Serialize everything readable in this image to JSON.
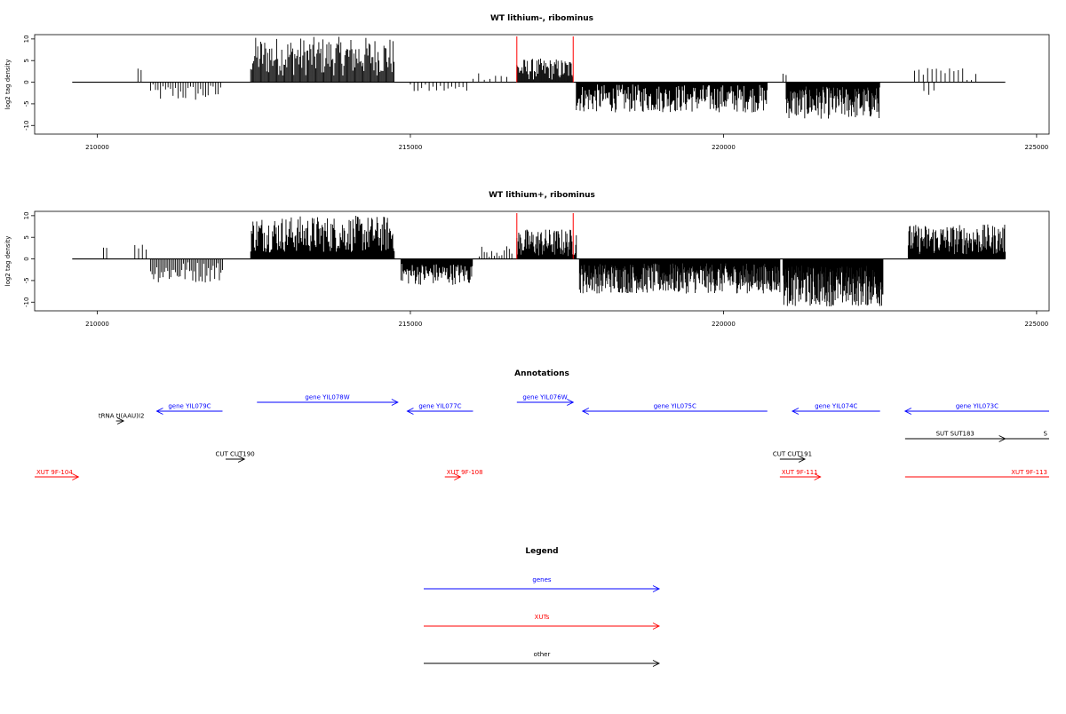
{
  "chart_data": [
    {
      "type": "bar",
      "title": "WT lithium-, ribominus",
      "ylabel": "log2 tag density",
      "xlim": [
        209000,
        225200
      ],
      "ylim": [
        -12,
        11
      ],
      "x_ticks": [
        210000,
        215000,
        220000,
        225000
      ],
      "x_tick_labels": [
        "210000",
        "215000",
        "220000",
        "225000"
      ],
      "y_ticks": [
        -10,
        -5,
        0,
        5,
        10
      ],
      "y_tick_labels": [
        "-10",
        "-5",
        "0",
        "5",
        "10"
      ],
      "baseline": [
        209600,
        224500
      ],
      "marker_lines": [
        216700,
        217600
      ],
      "marker_color": "#ff0000",
      "regions": [
        {
          "start": 210650,
          "end": 210700,
          "step": 50,
          "min": 2.5,
          "max": 3.5
        },
        {
          "start": 210850,
          "end": 212000,
          "step": 40,
          "min": -4.5,
          "max": -0.5
        },
        {
          "start": 212450,
          "end": 214750,
          "step": 16,
          "min": 1.5,
          "max": 10.5
        },
        {
          "start": 215000,
          "end": 215900,
          "step": 60,
          "min": -2.5,
          "max": -0.5
        },
        {
          "start": 216000,
          "end": 216600,
          "step": 90,
          "min": 0.5,
          "max": 2.5
        },
        {
          "start": 216700,
          "end": 217600,
          "step": 14,
          "min": 0.5,
          "max": 5.5
        },
        {
          "start": 217650,
          "end": 220700,
          "step": 12,
          "min": -7,
          "max": -0.5
        },
        {
          "start": 220950,
          "end": 221000,
          "step": 50,
          "min": 1.5,
          "max": 2
        },
        {
          "start": 221000,
          "end": 222500,
          "step": 9,
          "min": -8.5,
          "max": -1
        },
        {
          "start": 223050,
          "end": 224050,
          "step": 70,
          "min": 0.5,
          "max": 3.5
        },
        {
          "start": 223200,
          "end": 223400,
          "step": 80,
          "min": -3,
          "max": -1
        }
      ]
    },
    {
      "type": "bar",
      "title": "WT lithium+, ribominus",
      "ylabel": "log2 tag density",
      "xlim": [
        209000,
        225200
      ],
      "ylim": [
        -12,
        11
      ],
      "x_ticks": [
        210000,
        215000,
        220000,
        225000
      ],
      "x_tick_labels": [
        "210000",
        "215000",
        "220000",
        "225000"
      ],
      "y_ticks": [
        -10,
        -5,
        0,
        5,
        10
      ],
      "y_tick_labels": [
        "-10",
        "-5",
        "0",
        "5",
        "10"
      ],
      "baseline": [
        209600,
        224500
      ],
      "marker_lines": [
        216700,
        217600
      ],
      "marker_color": "#ff0000",
      "regions": [
        {
          "start": 210100,
          "end": 210150,
          "step": 50,
          "min": 2.5,
          "max": 3
        },
        {
          "start": 210600,
          "end": 210800,
          "step": 60,
          "min": 2,
          "max": 3.5
        },
        {
          "start": 210850,
          "end": 212000,
          "step": 25,
          "min": -5.5,
          "max": -0.5
        },
        {
          "start": 212450,
          "end": 214750,
          "step": 12,
          "min": 1.5,
          "max": 10
        },
        {
          "start": 214850,
          "end": 216000,
          "step": 12,
          "min": -6,
          "max": -1
        },
        {
          "start": 216100,
          "end": 216650,
          "step": 40,
          "min": 0.5,
          "max": 3
        },
        {
          "start": 216700,
          "end": 217650,
          "step": 10,
          "min": 0.5,
          "max": 7
        },
        {
          "start": 217700,
          "end": 220900,
          "step": 8,
          "min": -8,
          "max": -1
        },
        {
          "start": 220950,
          "end": 222550,
          "step": 7,
          "min": -11,
          "max": -1.5
        },
        {
          "start": 222950,
          "end": 224500,
          "step": 10,
          "min": 1,
          "max": 8
        }
      ]
    }
  ],
  "annotations": {
    "title": "Annotations",
    "genes": [
      {
        "label": "gene YIL079C",
        "start": 210950,
        "end": 212000,
        "dir": "left",
        "color": "#0000ff",
        "row": 1
      },
      {
        "label": "gene YIL078W",
        "start": 212550,
        "end": 214800,
        "dir": "right",
        "color": "#0000ff",
        "row": 0
      },
      {
        "label": "gene YIL077C",
        "start": 214950,
        "end": 216000,
        "dir": "left",
        "color": "#0000ff",
        "row": 1
      },
      {
        "label": "gene YIL076W",
        "start": 216700,
        "end": 217600,
        "dir": "right",
        "color": "#0000ff",
        "row": 0
      },
      {
        "label": "gene YIL075C",
        "start": 217750,
        "end": 220700,
        "dir": "left",
        "color": "#0000ff",
        "row": 1
      },
      {
        "label": "gene YIL074C",
        "start": 221100,
        "end": 222500,
        "dir": "left",
        "color": "#0000ff",
        "row": 1
      },
      {
        "label": "gene YIL073C",
        "start": 222900,
        "end": 225200,
        "dir": "left",
        "color": "#0000ff",
        "row": 1
      }
    ],
    "other": [
      {
        "label": "tRNA tI(AAU)I2",
        "start": 210300,
        "end": 210420,
        "dir": "right",
        "color": "#000000",
        "row": 2
      },
      {
        "label": "CUT CUT190",
        "start": 212050,
        "end": 212350,
        "dir": "right",
        "color": "#000000",
        "row": 3
      },
      {
        "label": "CUT CUT191",
        "start": 220900,
        "end": 221300,
        "dir": "right",
        "color": "#000000",
        "row": 3
      },
      {
        "label": "SUT SUT183",
        "start": 222900,
        "end": 224500,
        "dir": "right",
        "color": "#000000",
        "row": 4
      },
      {
        "label": "S",
        "start": 224500,
        "end": 225200,
        "dir": "none",
        "color": "#000000",
        "row": 4
      }
    ],
    "xuts": [
      {
        "label": "XUT 9F-104",
        "start": 209000,
        "end": 209700,
        "dir": "right",
        "color": "#ff0000",
        "row": 5
      },
      {
        "label": "XUT 9F-108",
        "start": 215550,
        "end": 215800,
        "dir": "right",
        "color": "#ff0000",
        "row": 5
      },
      {
        "label": "XUT 9F-111",
        "start": 220900,
        "end": 221550,
        "dir": "right",
        "color": "#ff0000",
        "row": 5
      },
      {
        "label": "XUT 9F-113",
        "start": 222900,
        "end": 225200,
        "dir": "none",
        "color": "#ff0000",
        "row": 5
      }
    ]
  },
  "legend": {
    "title": "Legend",
    "items": [
      {
        "label": "genes",
        "color": "#0000ff"
      },
      {
        "label": "XUTs",
        "color": "#ff0000"
      },
      {
        "label": "other",
        "color": "#000000"
      }
    ]
  }
}
